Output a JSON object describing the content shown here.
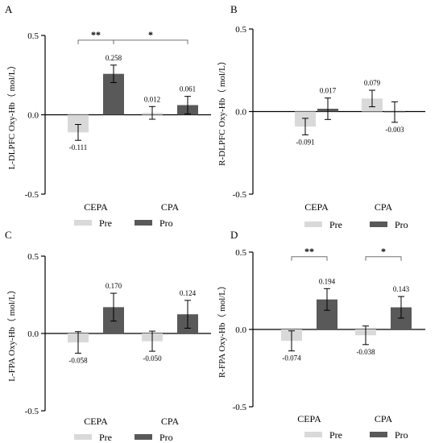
{
  "colors": {
    "pre": "#d9d9d9",
    "pro": "#595959",
    "axis": "#000000",
    "sig": "#707070"
  },
  "chart_data": [
    {
      "panel_letter": "A",
      "type": "bar",
      "ylabel": "L-DLPFC Oxy-Hb（ mol/L）",
      "ylim": [
        -0.5,
        0.5
      ],
      "yticks": [
        "0.5",
        "0.0",
        "-0.5"
      ],
      "categories": [
        "CEPA",
        "CPA"
      ],
      "series": [
        {
          "name": "Pre",
          "values": [
            -0.111,
            0.012
          ],
          "errors": [
            0.05,
            0.04
          ],
          "labels": [
            "-0.111",
            "0.012"
          ]
        },
        {
          "name": "Pro",
          "values": [
            0.258,
            0.061
          ],
          "errors": [
            0.055,
            0.055
          ],
          "labels": [
            "0.258",
            "0.061"
          ]
        }
      ],
      "legend": [
        "Pre",
        "Pro"
      ],
      "significance": [
        {
          "label": "**",
          "from": [
            0,
            0
          ],
          "to": [
            0,
            1
          ],
          "y": 0.47
        },
        {
          "label": "*",
          "from": [
            0,
            1
          ],
          "to": [
            1,
            1
          ],
          "y": 0.47
        }
      ]
    },
    {
      "panel_letter": "B",
      "type": "bar",
      "ylabel": "R-DLPFC Oxy-Hb（ mol/L）",
      "ylim": [
        -0.5,
        0.5
      ],
      "yticks": [
        "0.5",
        "0.0",
        "-0.5"
      ],
      "categories": [
        "CEPA",
        "CPA"
      ],
      "series": [
        {
          "name": "Pre",
          "values": [
            -0.091,
            0.079
          ],
          "errors": [
            0.05,
            0.05
          ],
          "labels": [
            "-0.091",
            "0.079"
          ]
        },
        {
          "name": "Pro",
          "values": [
            0.017,
            -0.003
          ],
          "errors": [
            0.065,
            0.062
          ],
          "labels": [
            "0.017",
            "-0.003"
          ]
        }
      ],
      "legend": [
        "Pre",
        "Pro"
      ],
      "significance": []
    },
    {
      "panel_letter": "C",
      "type": "bar",
      "ylabel": "L-FPA Oxy-Hb（ mol/L）",
      "ylim": [
        -0.5,
        0.5
      ],
      "yticks": [
        "0.5",
        "0.0",
        "-0.5"
      ],
      "categories": [
        "CEPA",
        "CPA"
      ],
      "series": [
        {
          "name": "Pre",
          "values": [
            -0.058,
            -0.05
          ],
          "errors": [
            0.07,
            0.065
          ],
          "labels": [
            "-0.058",
            "-0.050"
          ]
        },
        {
          "name": "Pro",
          "values": [
            0.17,
            0.124
          ],
          "errors": [
            0.09,
            0.09
          ],
          "labels": [
            "0.170",
            "0.124"
          ]
        }
      ],
      "legend": [
        "Pre",
        "Pro"
      ],
      "significance": []
    },
    {
      "panel_letter": "D",
      "type": "bar",
      "ylabel": "R-FPA Oxy-Hb（ mol/L）",
      "ylim": [
        -0.5,
        0.5
      ],
      "yticks": [
        "0.5",
        "0.0",
        "-0.5"
      ],
      "categories": [
        "CEPA",
        "CPA"
      ],
      "series": [
        {
          "name": "Pre",
          "values": [
            -0.074,
            -0.038
          ],
          "errors": [
            0.065,
            0.06
          ],
          "labels": [
            "-0.074",
            "-0.038"
          ]
        },
        {
          "name": "Pro",
          "values": [
            0.194,
            0.143
          ],
          "errors": [
            0.07,
            0.07
          ],
          "labels": [
            "0.194",
            "0.143"
          ]
        }
      ],
      "legend": [
        "Pre",
        "Pro"
      ],
      "significance": [
        {
          "label": "**",
          "from": [
            0,
            0
          ],
          "to": [
            0,
            1
          ],
          "y": 0.47
        },
        {
          "label": "*",
          "from": [
            1,
            0
          ],
          "to": [
            1,
            1
          ],
          "y": 0.47
        }
      ]
    }
  ]
}
